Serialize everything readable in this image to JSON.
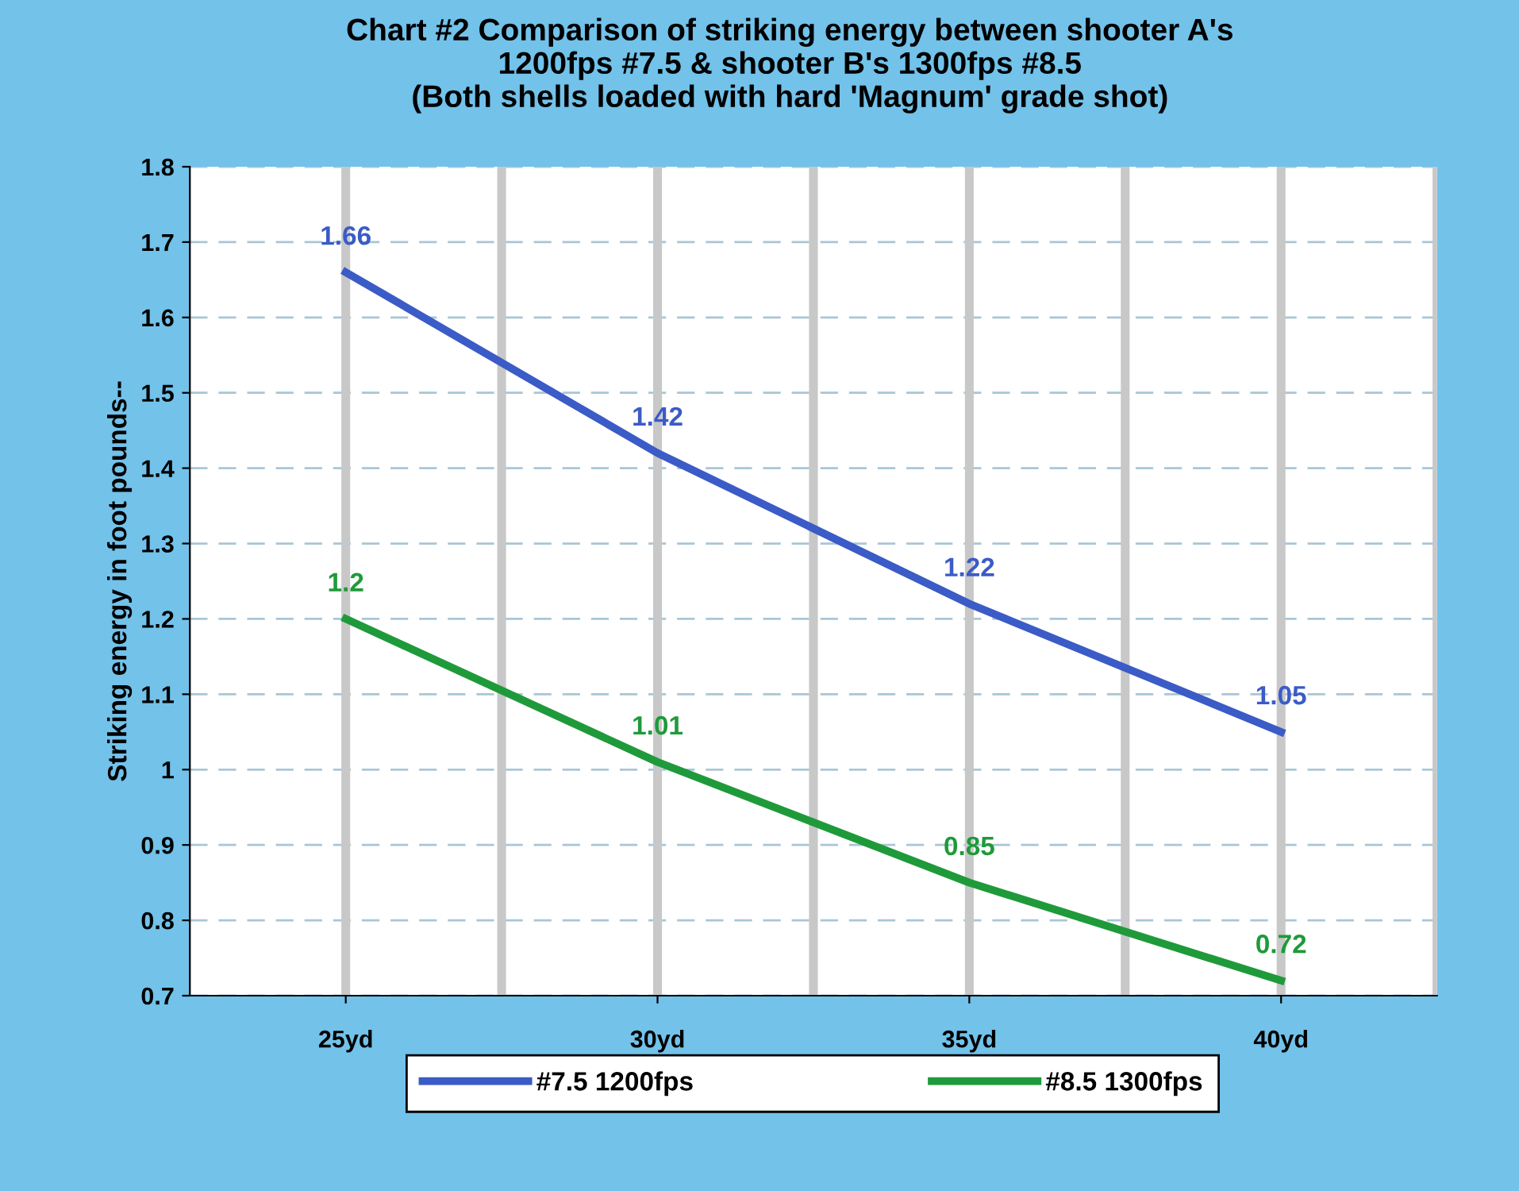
{
  "chart_data": {
    "type": "line",
    "title": "Chart #2 Comparison of striking energy between shooter A's\n1200fps #7.5 & shooter B's 1300fps #8.5\n(Both shells loaded with hard 'Magnum' grade shot)",
    "ylabel": "Striking energy in foot pounds--",
    "categories": [
      "25yd",
      "30yd",
      "35yd",
      "40yd"
    ],
    "series": [
      {
        "name": "#7.5 1200fps",
        "color": "#3b5bc6",
        "values": [
          1.66,
          1.42,
          1.22,
          1.05
        ]
      },
      {
        "name": "#8.5 1300fps",
        "color": "#1f9a3a",
        "values": [
          1.2,
          1.01,
          0.85,
          0.72
        ]
      }
    ],
    "ylim": [
      0.7,
      1.8
    ],
    "yticks": [
      0.7,
      0.8,
      0.9,
      1,
      1.1,
      1.2,
      1.3,
      1.4,
      1.5,
      1.6,
      1.7,
      1.8
    ],
    "grid": true,
    "legend": "bottom",
    "data_labels": true,
    "marker": "none",
    "line_style": "solid"
  }
}
